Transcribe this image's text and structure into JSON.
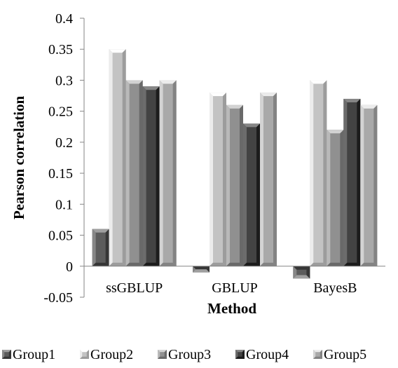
{
  "chart_data": {
    "type": "bar",
    "title": "",
    "xlabel": "Method",
    "ylabel": "Pearson correlation",
    "categories": [
      "ssGBLUP",
      "GBLUP",
      "BayesB"
    ],
    "series": [
      {
        "name": "Group1",
        "values": [
          0.06,
          -0.01,
          -0.02
        ],
        "color": "#595959"
      },
      {
        "name": "Group2",
        "values": [
          0.35,
          0.28,
          0.3
        ],
        "color": "#bfbfbf"
      },
      {
        "name": "Group3",
        "values": [
          0.3,
          0.26,
          0.22
        ],
        "color": "#8c8c8c"
      },
      {
        "name": "Group4",
        "values": [
          0.29,
          0.23,
          0.27
        ],
        "color": "#3f3f3f"
      },
      {
        "name": "Group5",
        "values": [
          0.3,
          0.28,
          0.26
        ],
        "color": "#a6a6a6"
      }
    ],
    "ylim": [
      -0.05,
      0.4
    ],
    "yticks": [
      "-0.05",
      "0",
      "0.05",
      "0.1",
      "0.15",
      "0.2",
      "0.25",
      "0.3",
      "0.35",
      "0.4"
    ],
    "grid": false,
    "legend_position": "bottom",
    "bar_style": "3d-bevel"
  }
}
